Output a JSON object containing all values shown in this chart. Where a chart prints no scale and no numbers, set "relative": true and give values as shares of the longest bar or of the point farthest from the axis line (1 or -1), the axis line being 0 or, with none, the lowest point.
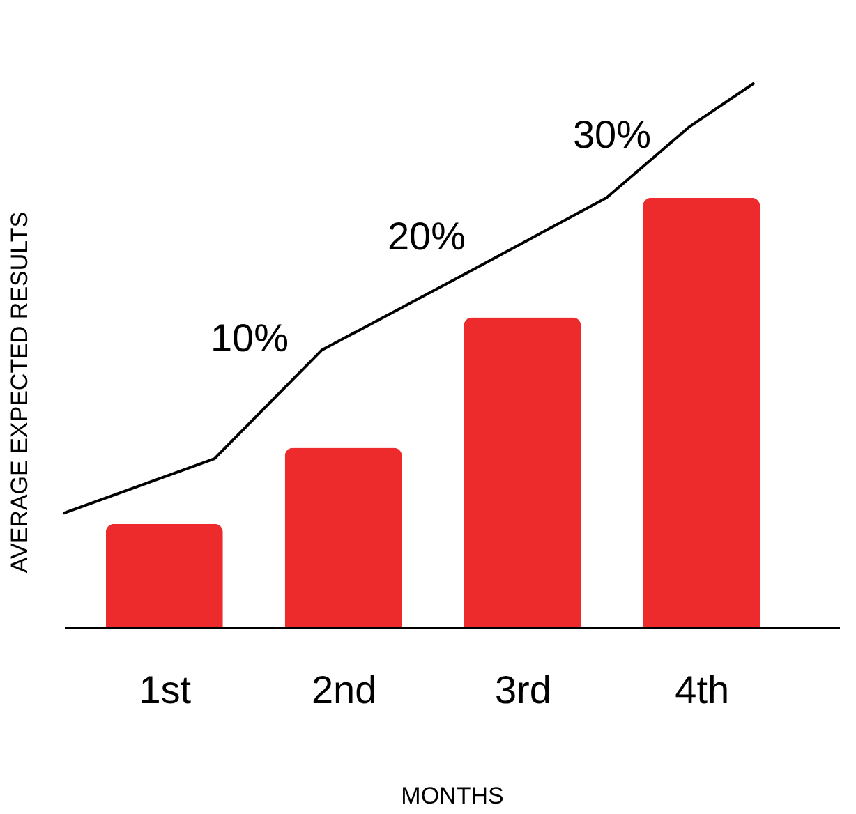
{
  "chart_data": {
    "type": "bar",
    "xlabel": "MONTHS",
    "ylabel": "AVERAGE EXPECTED RESULTS",
    "relative": true,
    "tick_labels": "x",
    "line_style": "solid",
    "x": [
      1,
      2,
      3,
      4
    ],
    "xlim": [
      0.44,
      4.77
    ],
    "xticks": [
      {
        "value": 1,
        "label": "1st"
      },
      {
        "value": 2,
        "label": "2nd"
      },
      {
        "value": 3,
        "label": "3rd"
      },
      {
        "value": 4,
        "label": "4th"
      }
    ],
    "series": [
      {
        "color": "#ed2a2c",
        "values": [
          0.19,
          0.33,
          0.57,
          0.79
        ]
      },
      {
        "type": "line",
        "color": "#000000",
        "x": [
          0.44,
          1.28,
          1.88,
          2.68,
          3.47,
          3.93,
          4.29
        ],
        "values": [
          0.21,
          0.31,
          0.51,
          0.65,
          0.79,
          0.92,
          1
        ]
      }
    ],
    "annotations": [
      "10%",
      "20%",
      "30%"
    ]
  }
}
